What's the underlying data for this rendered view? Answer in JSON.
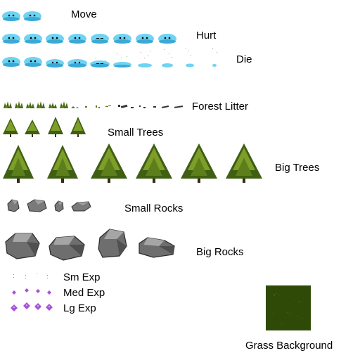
{
  "labels": {
    "move": "Move",
    "hurt": "Hurt",
    "die": "Die",
    "forest_litter": "Forest Litter",
    "small_trees": "Small Trees",
    "big_trees": "Big Trees",
    "small_rocks": "Small Rocks",
    "big_rocks": "Big Rocks",
    "sm_exp": "Sm Exp",
    "med_exp": "Med Exp",
    "lg_exp": "Lg Exp",
    "grass_background": "Grass Background"
  },
  "colors": {
    "slime": "#6fd3f2",
    "slime_dark": "#3aa9d6",
    "tree_dark": "#3f5f12",
    "tree_light": "#7e9e2a",
    "rock": "#7a7a7a",
    "rock_dark": "#3a3a3a",
    "exp": "#a653d6",
    "grass": "#2f4a06"
  },
  "icons": [
    "slime-sprite",
    "tree-sprite",
    "rock-sprite",
    "exp-gem-sprite",
    "litter-sprite",
    "grass-tile"
  ]
}
